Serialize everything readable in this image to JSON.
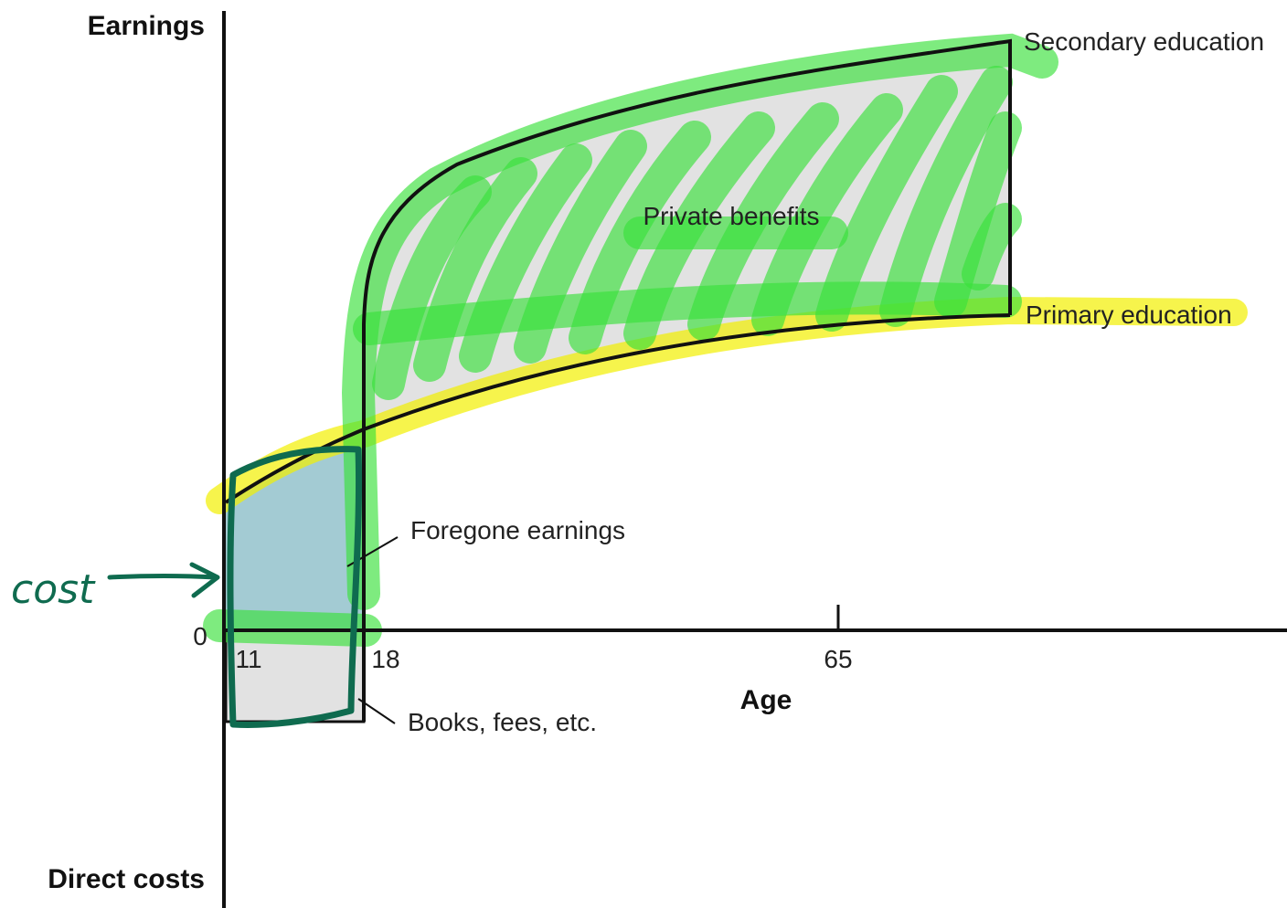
{
  "axes": {
    "y_top_label": "Earnings",
    "y_bottom_label": "Direct costs",
    "x_label": "Age",
    "origin_label": "0",
    "ticks": [
      "11",
      "18",
      "65"
    ]
  },
  "labels": {
    "secondary": "Secondary education",
    "primary": "Primary education",
    "private_benefits": "Private benefits",
    "foregone": "Foregone earnings",
    "books": "Books, fees, etc.",
    "handwritten_cost": "cost"
  },
  "colors": {
    "green_highlight": "#39e03a",
    "yellow_highlight": "#f2f000",
    "foregone_fill": "#a3cbd3",
    "gray_fill": "#e2e2e2",
    "annotation_ink": "#0f6b4f"
  }
}
